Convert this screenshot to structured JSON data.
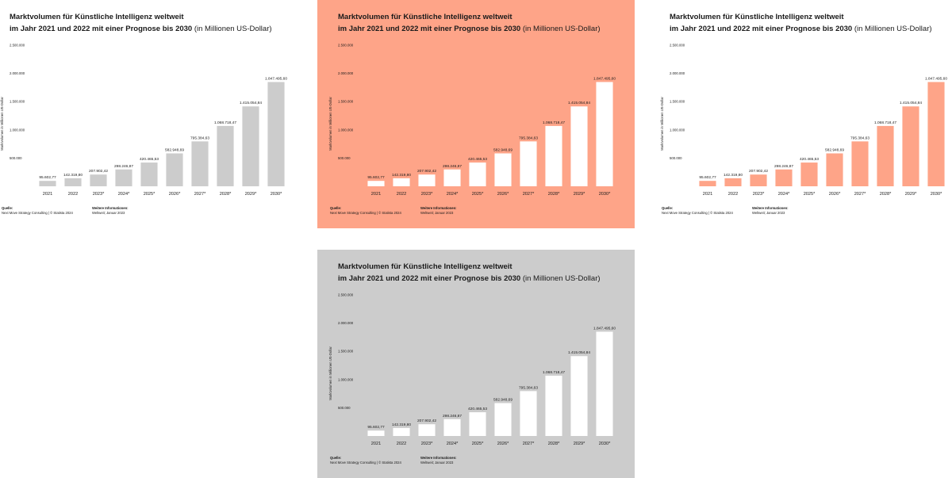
{
  "chart_data": {
    "type": "bar",
    "title": "Marktvolumen für Künstliche Intelligenz weltweit",
    "subtitle": "im Jahr 2021 und 2022 mit einer Prognose bis 2030",
    "unit_note": "(in Millionen US-Dollar)",
    "ylabel": "Marktvolumen in Millionen US-Dollar",
    "xlabel": "",
    "categories": [
      "2021",
      "2022",
      "2023*",
      "2024*",
      "2025*",
      "2026*",
      "2027*",
      "2028*",
      "2029*",
      "2030*"
    ],
    "values": [
      95602.77,
      142319.8,
      207902.42,
      298246.87,
      420465.53,
      582948.69,
      795384.63,
      1068718.47,
      1415054.84,
      1847495.6
    ],
    "value_labels": [
      "95.602,77",
      "142.319,80",
      "207.902,42",
      "298.246,87",
      "420.465,53",
      "582.948,69",
      "795.384,63",
      "1.068.718,47",
      "1.415.054,84",
      "1.847.495,60"
    ],
    "y_ticks": [
      "500.000",
      "1.000.000",
      "1.500.000",
      "2.000.000",
      "2.500.000"
    ],
    "y_tick_values": [
      500000,
      1000000,
      1500000,
      2000000,
      2500000
    ],
    "ylim": [
      0,
      2500000
    ],
    "grid": false
  },
  "footer": {
    "source_label": "Quelle:",
    "source_text": "Next Move Strategy Consulting | © Statista 2024",
    "info_label": "Weitere Informationen:",
    "info_text": "Weltweit; Januar 2023"
  },
  "variants": [
    {
      "background": "#ffffff",
      "bar_color": "#cccccc"
    },
    {
      "background": "#fea488",
      "bar_color": "#ffffff"
    },
    {
      "background": "#ffffff",
      "bar_color": "#fea488"
    },
    {
      "background": "#cccccc",
      "bar_color": "#ffffff"
    }
  ]
}
